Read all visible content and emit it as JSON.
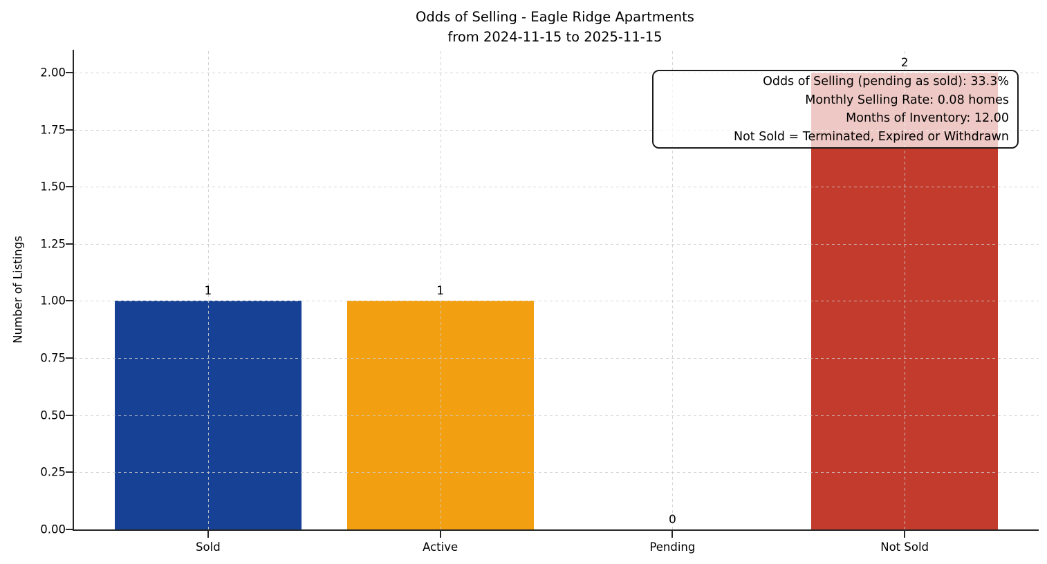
{
  "chart_data": {
    "type": "bar",
    "title": "Odds of Selling - Eagle Ridge Apartments",
    "subtitle": "from 2024-11-15 to 2025-11-15",
    "categories": [
      "Sold",
      "Active",
      "Pending",
      "Not Sold"
    ],
    "values": [
      1,
      1,
      0,
      2
    ],
    "bar_colors": [
      "#164194",
      "#f2a012",
      null,
      "#c33b2c"
    ],
    "xlabel": "",
    "ylabel": "Number of Listings",
    "ylim": [
      0,
      2.0
    ],
    "ytick_labels": [
      "0.00",
      "0.25",
      "0.50",
      "0.75",
      "1.00",
      "1.25",
      "1.50",
      "1.75",
      "2.00"
    ],
    "grid": "dashed, both axes, drawn over bars",
    "legend": "none",
    "annotation": {
      "lines": [
        "Odds of Selling (pending as sold): 33.3%",
        "Monthly Selling Rate: 0.08 homes",
        "Months of Inventory: 12.00",
        "Not Sold = Terminated, Expired or Withdrawn"
      ]
    }
  }
}
